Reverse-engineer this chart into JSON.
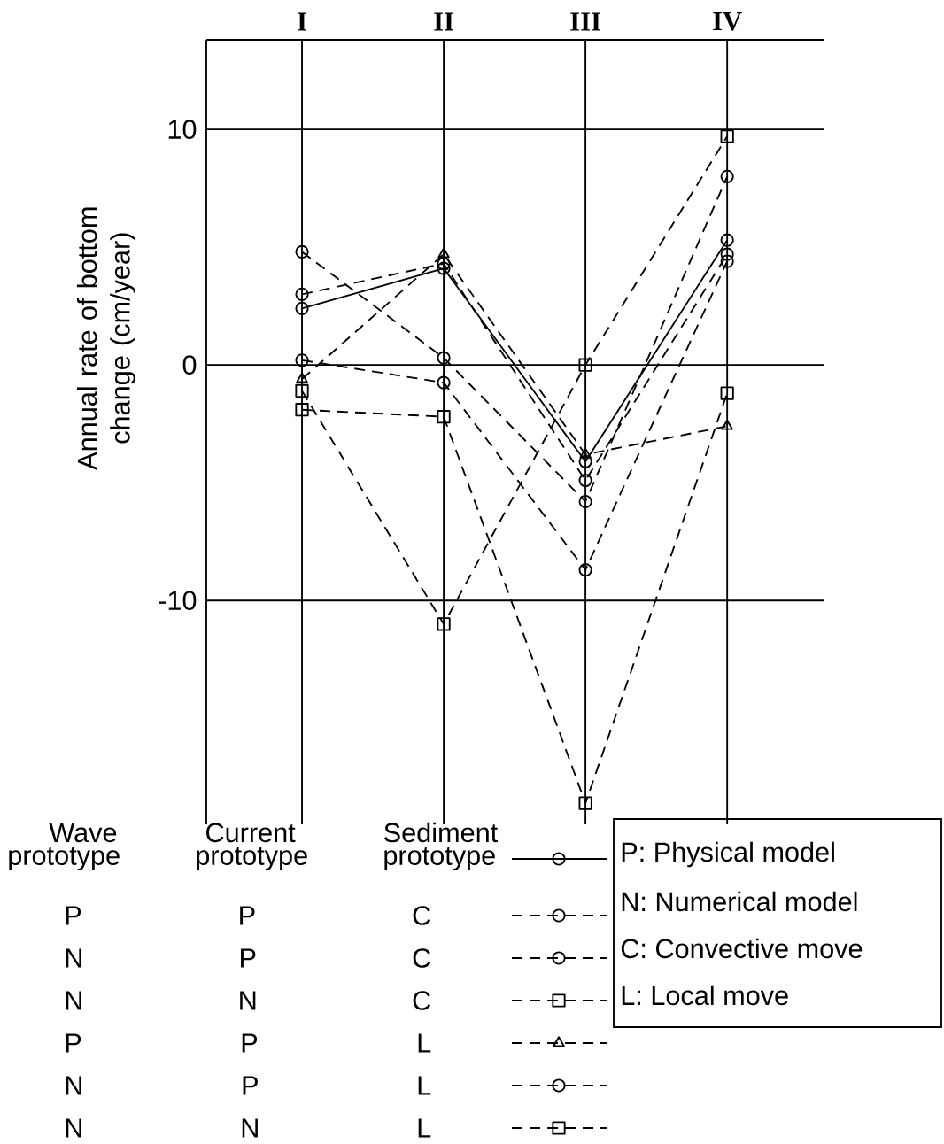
{
  "chart_data": {
    "type": "line",
    "ylabel": "Annual rate of bottom change (cm/year)",
    "categories": [
      "I",
      "II",
      "III",
      "IV"
    ],
    "ylim": [
      -19.5,
      13.8
    ],
    "yticks": [
      -10,
      0,
      10
    ],
    "grid": true,
    "legend": "bottom",
    "annotations": [
      "Wave Current Sediment",
      "P: Physical model",
      "N: Numerical model",
      "C: Convective move",
      "L: Local move"
    ],
    "series": [
      {
        "name": "prototype prototype prototype",
        "color": "#000000",
        "marker": "circle",
        "line_style": "solid",
        "values": [
          2.4,
          4.1,
          -4.1,
          5.3
        ]
      },
      {
        "name": "P P C",
        "color": "#000000",
        "marker": "circle",
        "line_style": "dashed",
        "values": [
          3.0,
          4.3,
          -4.9,
          4.7
        ]
      },
      {
        "name": "N P C",
        "color": "#000000",
        "marker": "circle",
        "line_style": "dashed",
        "values": [
          4.8,
          0.3,
          -5.8,
          8.0
        ]
      },
      {
        "name": "N N C",
        "color": "#000000",
        "marker": "square",
        "line_style": "dashed",
        "values": [
          -1.9,
          -2.2,
          -18.6,
          -1.2
        ]
      },
      {
        "name": "P P L",
        "color": "#000000",
        "marker": "triangle",
        "line_style": "dashed",
        "values": [
          -0.6,
          4.7,
          -3.8,
          -2.6
        ]
      },
      {
        "name": "N P L",
        "color": "#000000",
        "marker": "circle",
        "line_style": "dashed",
        "values": [
          0.2,
          -0.75,
          -8.7,
          4.4
        ]
      },
      {
        "name": "N N L",
        "color": "#000000",
        "marker": "square",
        "line_style": "dashed",
        "values": [
          -1.1,
          -11.0,
          0,
          9.7
        ]
      }
    ]
  }
}
